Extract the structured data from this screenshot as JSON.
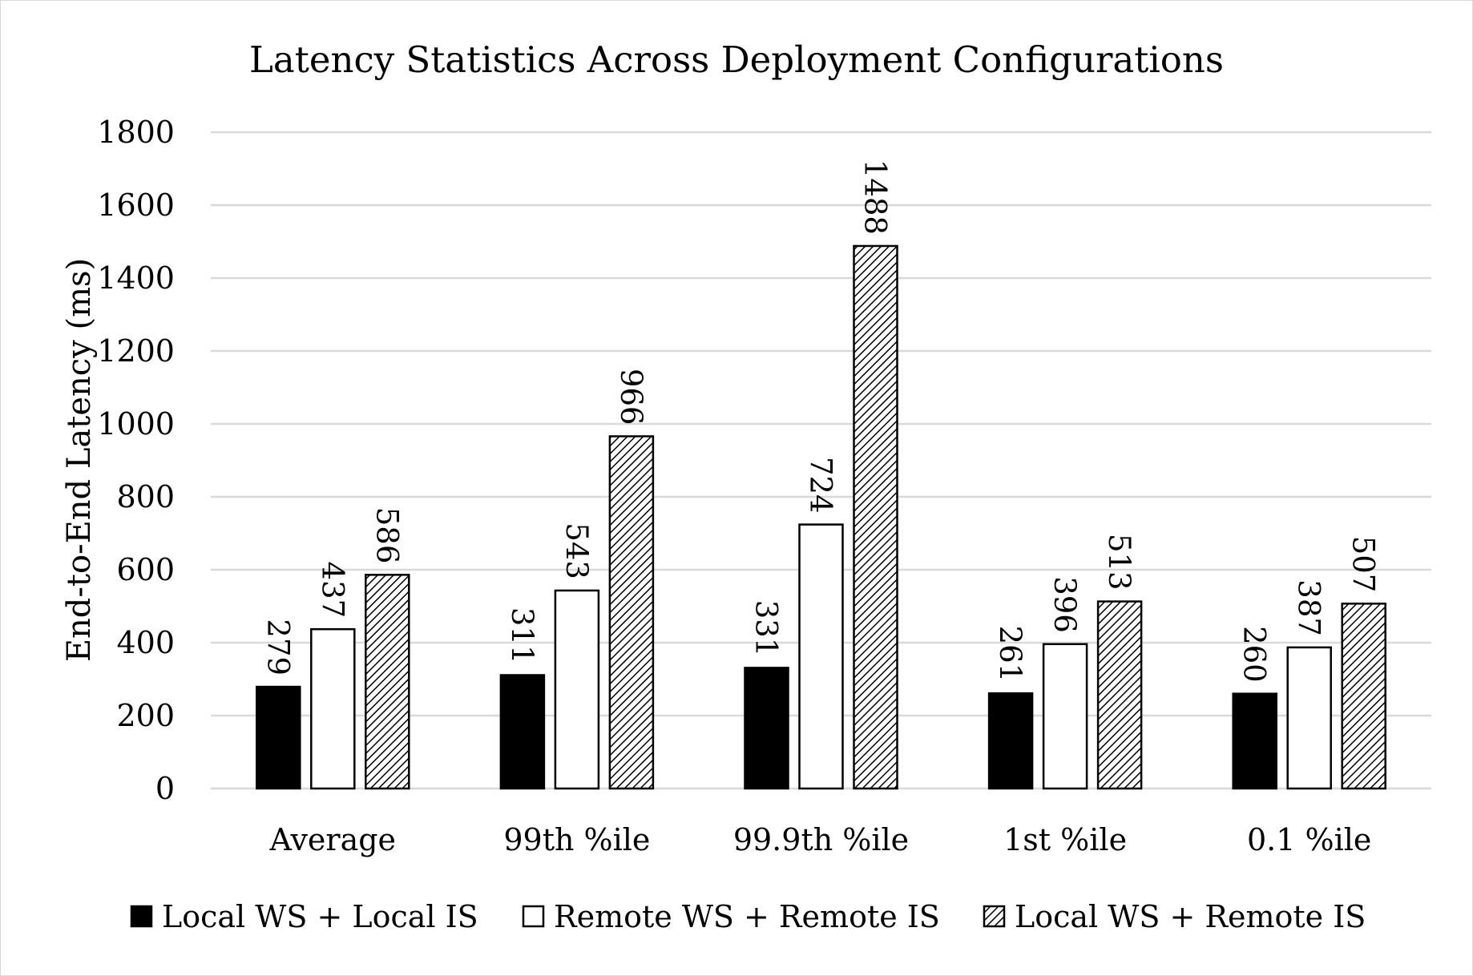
{
  "chart_data": {
    "type": "bar",
    "title": "Latency Statistics Across Deployment Configurations",
    "xlabel": "",
    "ylabel": "End-to-End Latency (ms)",
    "ylim": [
      0,
      1800
    ],
    "yticks": [
      0,
      200,
      400,
      600,
      800,
      1000,
      1200,
      1400,
      1600,
      1800
    ],
    "grid": true,
    "legend_position": "bottom",
    "categories": [
      "Average",
      "99th %ile",
      "99.9th %ile",
      "1st %ile",
      "0.1 %ile"
    ],
    "series": [
      {
        "name": "Local WS + Local IS",
        "values": [
          279,
          311,
          331,
          261,
          260
        ],
        "fill": "solid-black"
      },
      {
        "name": "Remote WS + Remote IS",
        "values": [
          437,
          543,
          724,
          396,
          387
        ],
        "fill": "white"
      },
      {
        "name": "Local WS + Remote IS",
        "values": [
          586,
          966,
          1488,
          513,
          507
        ],
        "fill": "diagonal-hatch"
      }
    ],
    "data_labels": true,
    "colors": {
      "bar_stroke": "#000000",
      "grid": "#d9d9d9",
      "frame": "#d9d9d9"
    }
  }
}
